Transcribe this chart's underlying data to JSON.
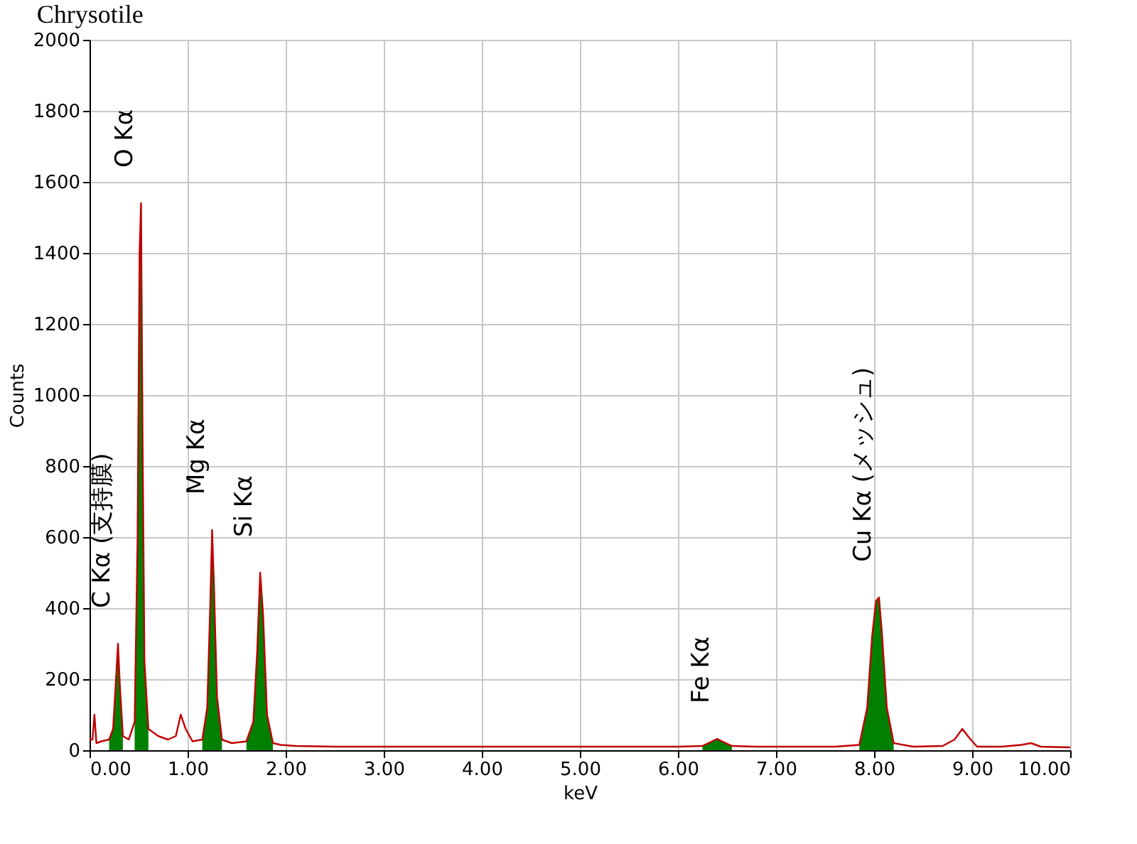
{
  "chart_data": {
    "type": "line",
    "title": "Chrysotile",
    "xlabel": "keV",
    "ylabel": "Counts",
    "x": [
      0.0,
      0.03,
      0.05,
      0.07,
      0.12,
      0.2,
      0.24,
      0.27,
      0.29,
      0.31,
      0.34,
      0.4,
      0.46,
      0.49,
      0.51,
      0.525,
      0.54,
      0.56,
      0.6,
      0.7,
      0.8,
      0.88,
      0.93,
      0.98,
      1.05,
      1.15,
      1.2,
      1.23,
      1.25,
      1.27,
      1.3,
      1.35,
      1.45,
      1.6,
      1.67,
      1.71,
      1.74,
      1.77,
      1.81,
      1.87,
      1.95,
      2.1,
      2.5,
      3.0,
      3.5,
      4.0,
      4.5,
      5.0,
      5.5,
      6.0,
      6.25,
      6.35,
      6.4,
      6.45,
      6.55,
      6.8,
      7.2,
      7.6,
      7.85,
      7.93,
      7.98,
      8.02,
      8.05,
      8.08,
      8.13,
      8.2,
      8.4,
      8.7,
      8.82,
      8.9,
      8.97,
      9.05,
      9.3,
      9.5,
      9.6,
      9.7,
      10.0
    ],
    "series": [
      {
        "type": "area",
        "color": "#008000",
        "values": [
          null,
          null,
          null,
          null,
          null,
          30,
          60,
          200,
          300,
          180,
          40,
          null,
          80,
          600,
          1400,
          1540,
          900,
          250,
          60,
          null,
          null,
          null,
          null,
          null,
          null,
          30,
          120,
          400,
          620,
          450,
          150,
          30,
          null,
          25,
          80,
          280,
          500,
          380,
          100,
          20,
          null,
          null,
          null,
          null,
          null,
          null,
          null,
          null,
          null,
          null,
          12,
          25,
          32,
          25,
          12,
          null,
          null,
          null,
          15,
          120,
          320,
          420,
          430,
          330,
          120,
          20,
          null,
          null,
          null,
          null,
          null,
          null,
          null,
          null,
          null,
          null,
          null
        ]
      },
      {
        "color": "#c00000",
        "values": [
          30,
          30,
          100,
          20,
          25,
          30,
          60,
          200,
          300,
          180,
          40,
          30,
          80,
          600,
          1400,
          1540,
          900,
          250,
          60,
          40,
          30,
          40,
          100,
          60,
          25,
          30,
          120,
          400,
          620,
          450,
          150,
          30,
          20,
          25,
          80,
          280,
          500,
          380,
          100,
          20,
          15,
          12,
          10,
          10,
          10,
          10,
          10,
          10,
          10,
          10,
          12,
          25,
          32,
          25,
          12,
          10,
          10,
          10,
          15,
          120,
          320,
          420,
          430,
          330,
          120,
          20,
          10,
          12,
          30,
          60,
          35,
          10,
          10,
          15,
          20,
          10,
          8
        ]
      }
    ],
    "xlim": [
      0,
      10
    ],
    "xticks": [
      {
        "value": 0,
        "label": "0.00"
      },
      {
        "value": 1,
        "label": "1.00"
      },
      {
        "value": 2,
        "label": "2.00"
      },
      {
        "value": 3,
        "label": "3.00"
      },
      {
        "value": 4,
        "label": "4.00"
      },
      {
        "value": 5,
        "label": "5.00"
      },
      {
        "value": 6,
        "label": "6.00"
      },
      {
        "value": 7,
        "label": "7.00"
      },
      {
        "value": 8,
        "label": "8.00"
      },
      {
        "value": 9,
        "label": "9.00"
      },
      {
        "value": 10,
        "label": "10.00"
      }
    ],
    "ylim": [
      0,
      2000
    ],
    "yticks": [
      0,
      200,
      400,
      600,
      800,
      1000,
      1200,
      1400,
      1600,
      1800,
      2000
    ],
    "grid": true,
    "marker": "none",
    "line_style": "solid",
    "annotations": [
      {
        "text": "C Kα (支持膜)",
        "x": 0.29,
        "y": 300
      },
      {
        "text": "O Kα",
        "x": 0.525,
        "y": 1540
      },
      {
        "text": "Mg Kα",
        "x": 1.25,
        "y": 620
      },
      {
        "text": "Si Kα",
        "x": 1.74,
        "y": 500
      },
      {
        "text": "Fe Kα",
        "x": 6.4,
        "y": 32
      },
      {
        "text": "Cu Kα (メッシュ)",
        "x": 8.05,
        "y": 430
      }
    ]
  }
}
